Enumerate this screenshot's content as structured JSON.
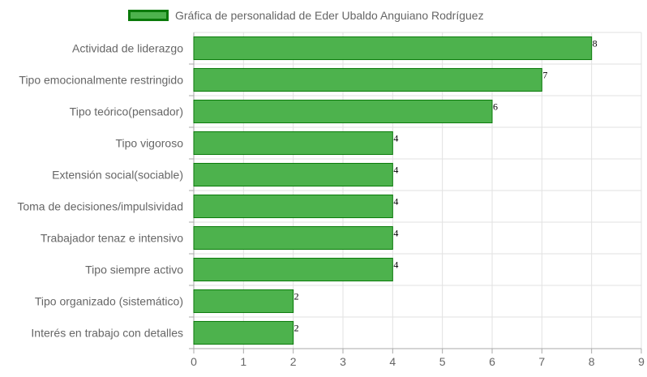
{
  "chart_data": {
    "type": "bar",
    "orientation": "horizontal",
    "title": "",
    "xlabel": "",
    "ylabel": "",
    "categories": [
      "Actividad de liderazgo",
      "Tipo emocionalmente restringido",
      "Tipo teórico(pensador)",
      "Tipo vigoroso",
      "Extensión social(sociable)",
      "Toma de decisiones/impulsividad",
      "Trabajador tenaz e intensivo",
      "Tipo siempre activo",
      "Tipo organizado (sistemático)",
      "Interés en trabajo con detalles"
    ],
    "series": [
      {
        "name": "Gráfica de personalidad de Eder Ubaldo Anguiano Rodríguez",
        "values": [
          8,
          7,
          6,
          4,
          4,
          4,
          4,
          4,
          2,
          2
        ]
      }
    ],
    "xlim": [
      0,
      9
    ],
    "x_ticks": [
      "0",
      "1",
      "2",
      "3",
      "4",
      "5",
      "6",
      "7",
      "8",
      "9"
    ],
    "grid": true,
    "legend": "top-center",
    "colors": {
      "bar_fill": "#4db24d",
      "bar_border": "#0a7a0a"
    }
  }
}
